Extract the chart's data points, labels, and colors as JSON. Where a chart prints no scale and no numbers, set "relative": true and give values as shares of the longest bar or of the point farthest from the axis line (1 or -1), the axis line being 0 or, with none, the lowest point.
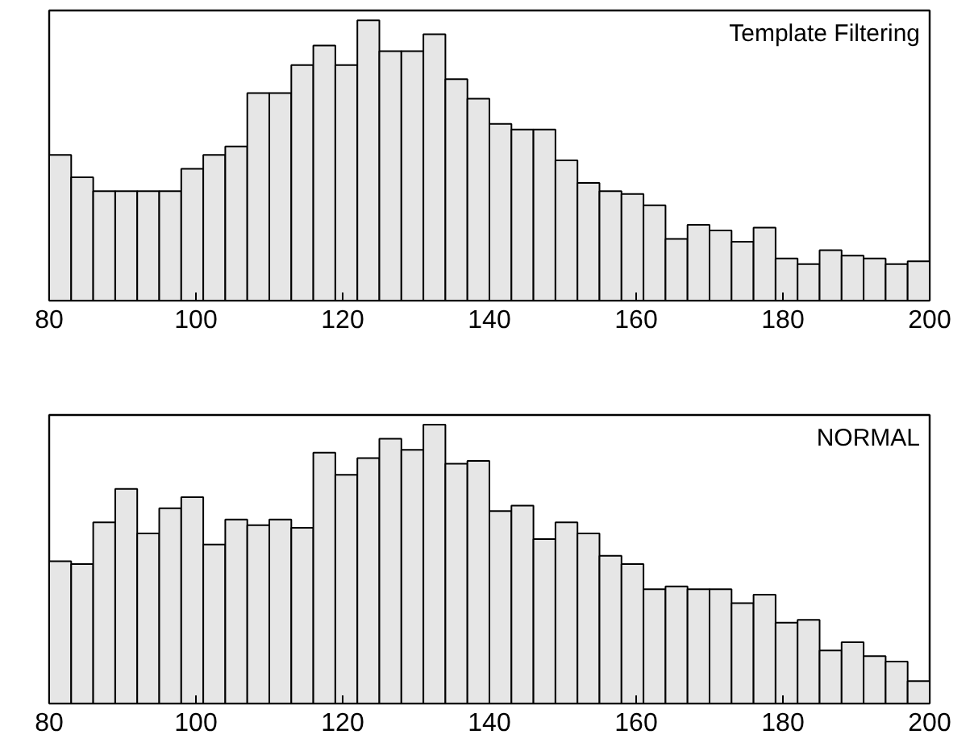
{
  "chart_data": [
    {
      "type": "bar",
      "relative": true,
      "color": "#e6e6e6",
      "annotations": [
        "Template Filtering"
      ],
      "x": [
        81.5,
        84.5,
        87.5,
        90.5,
        93.5,
        96.5,
        99.5,
        102.5,
        105.5,
        108.5,
        111.5,
        114.5,
        117.5,
        120.5,
        123.5,
        126.5,
        129.5,
        132.5,
        135.5,
        138.5,
        141.5,
        144.5,
        147.5,
        150.5,
        153.5,
        156.5,
        159.5,
        162.5,
        165.5,
        168.5,
        171.5,
        174.5,
        177.5,
        180.5,
        183.5,
        186.5,
        189.5,
        192.5,
        195.5,
        198.5
      ],
      "values": [
        0.52,
        0.44,
        0.39,
        0.39,
        0.39,
        0.39,
        0.47,
        0.52,
        0.55,
        0.74,
        0.74,
        0.84,
        0.91,
        0.84,
        1,
        0.89,
        0.89,
        0.95,
        0.79,
        0.72,
        0.63,
        0.61,
        0.61,
        0.5,
        0.42,
        0.39,
        0.38,
        0.34,
        0.22,
        0.27,
        0.25,
        0.21,
        0.26,
        0.15,
        0.13,
        0.18,
        0.16,
        0.15,
        0.13,
        0.14
      ],
      "xlim": [
        80,
        200
      ],
      "xticks": [
        80,
        100,
        120,
        140,
        160,
        180,
        200
      ]
    },
    {
      "type": "bar",
      "relative": true,
      "color": "#e6e6e6",
      "annotations": [
        "NORMAL"
      ],
      "x": [
        81.5,
        84.5,
        87.5,
        90.5,
        93.5,
        96.5,
        99.5,
        102.5,
        105.5,
        108.5,
        111.5,
        114.5,
        117.5,
        120.5,
        123.5,
        126.5,
        129.5,
        132.5,
        135.5,
        138.5,
        141.5,
        144.5,
        147.5,
        150.5,
        153.5,
        156.5,
        159.5,
        162.5,
        165.5,
        168.5,
        171.5,
        174.5,
        177.5,
        180.5,
        183.5,
        186.5,
        189.5,
        192.5,
        195.5,
        198.5
      ],
      "values": [
        0.51,
        0.5,
        0.65,
        0.77,
        0.61,
        0.7,
        0.74,
        0.57,
        0.66,
        0.64,
        0.66,
        0.63,
        0.9,
        0.82,
        0.88,
        0.95,
        0.91,
        1,
        0.86,
        0.87,
        0.69,
        0.71,
        0.59,
        0.65,
        0.61,
        0.53,
        0.5,
        0.41,
        0.42,
        0.41,
        0.41,
        0.36,
        0.39,
        0.29,
        0.3,
        0.19,
        0.22,
        0.17,
        0.15,
        0.08
      ],
      "xlim": [
        80,
        200
      ],
      "xticks": [
        80,
        100,
        120,
        140,
        160,
        180,
        200
      ]
    }
  ]
}
